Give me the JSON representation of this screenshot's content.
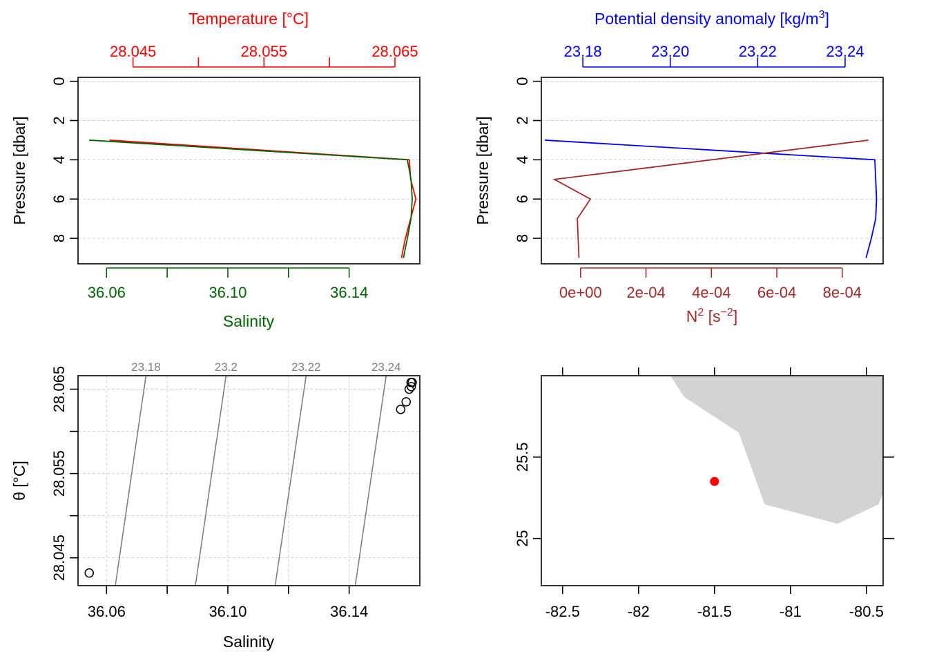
{
  "chart_data": [
    {
      "panel": "profile-temperature-salinity",
      "type": "line",
      "ylabel": "Pressure [dbar]",
      "y_ticks": [
        "0",
        "2",
        "4",
        "6",
        "8"
      ],
      "ylim": [
        -0.2,
        9.3
      ],
      "y_reversed": true,
      "grid": "horizontal dashed",
      "top_axis": {
        "label": "Temperature [°C]",
        "color": "#ff0000",
        "range": [
          28.0408,
          28.0669
        ],
        "ticks": [
          28.045,
          28.05,
          28.055,
          28.06,
          28.065
        ],
        "tick_labels": [
          "28.045",
          "",
          "28.055",
          "",
          "28.065"
        ]
      },
      "bottom_axis": {
        "label": "Salinity",
        "color": "#006400",
        "range": [
          36.0506,
          36.1633
        ],
        "ticks": [
          36.06,
          36.08,
          36.1,
          36.12,
          36.14
        ],
        "tick_labels": [
          "36.06",
          "",
          "36.10",
          "",
          "36.14"
        ]
      },
      "series": [
        {
          "axis": "top",
          "color": "#ff0000",
          "points": [
            [
              28.0432,
              3
            ],
            [
              28.0661,
              4
            ],
            [
              28.0662,
              5
            ],
            [
              28.0666,
              6
            ],
            [
              28.0662,
              7
            ],
            [
              28.0658,
              8
            ],
            [
              28.0655,
              9
            ]
          ]
        },
        {
          "axis": "bottom",
          "color": "#006400",
          "points": [
            [
              36.0543,
              3
            ],
            [
              36.1592,
              4
            ],
            [
              36.1604,
              5
            ],
            [
              36.1608,
              6
            ],
            [
              36.1604,
              7
            ],
            [
              36.1592,
              8
            ],
            [
              36.1579,
              9
            ]
          ]
        }
      ]
    },
    {
      "panel": "profile-density-n2",
      "type": "line",
      "ylabel": "Pressure [dbar]",
      "y_ticks": [
        "0",
        "2",
        "4",
        "6",
        "8"
      ],
      "ylim": [
        -0.2,
        9.3
      ],
      "y_reversed": true,
      "grid": "horizontal dashed",
      "top_axis": {
        "label": "Potential density anomaly [kg/m",
        "label_sup": "3",
        "label_end": "]",
        "color": "#0000ff",
        "range": [
          23.1705,
          23.2487
        ],
        "ticks": [
          23.18,
          23.2,
          23.22,
          23.24
        ],
        "tick_labels": [
          "23.18",
          "23.20",
          "23.22",
          "23.24"
        ]
      },
      "bottom_axis": {
        "label_base": "N",
        "label_sup": "2",
        "label_mid": " [s",
        "label_sup2": "−2",
        "label_end": "]",
        "color": "#a52a2a",
        "range": [
          -0.00012,
          0.000925
        ],
        "ticks": [
          0,
          0.0002,
          0.0004,
          0.0006,
          0.0008
        ],
        "tick_labels": [
          "0e+00",
          "2e-04",
          "4e-04",
          "6e-04",
          "8e-04"
        ]
      },
      "series": [
        {
          "axis": "top",
          "color": "#0000ff",
          "points": [
            [
              23.1713,
              3
            ],
            [
              23.2468,
              4
            ],
            [
              23.247,
              5
            ],
            [
              23.2472,
              6
            ],
            [
              23.247,
              7
            ],
            [
              23.246,
              8
            ],
            [
              23.2448,
              9
            ]
          ]
        },
        {
          "axis": "bottom",
          "color": "#a52a2a",
          "points": [
            [
              0.00088,
              3
            ],
            [
              -8e-05,
              5
            ],
            [
              3e-05,
              6
            ],
            [
              -1e-05,
              7
            ],
            [
              -5e-06,
              9
            ]
          ]
        }
      ]
    },
    {
      "panel": "ts-diagram",
      "type": "scatter",
      "xlabel": "Salinity",
      "ylabel": "θ [°C]",
      "x_range": [
        36.0506,
        36.1633
      ],
      "y_range": [
        28.0417,
        28.0666
      ],
      "x_ticks": [
        36.06,
        36.08,
        36.1,
        36.12,
        36.14
      ],
      "x_tick_labels": [
        "36.06",
        "",
        "36.10",
        "",
        "36.14"
      ],
      "y_ticks": [
        28.045,
        28.05,
        28.055,
        28.06,
        28.065
      ],
      "y_tick_labels": [
        "28.045",
        "",
        "28.055",
        "",
        "28.065"
      ],
      "grid": "dashed",
      "points": [
        [
          36.0543,
          28.0432
        ],
        [
          36.157,
          28.0626
        ],
        [
          36.1588,
          28.0635
        ],
        [
          36.1598,
          28.065
        ],
        [
          36.1605,
          28.0653
        ],
        [
          36.1608,
          28.0658
        ],
        [
          36.1604,
          28.0658
        ]
      ],
      "isopycnals": [
        {
          "label": "23.18",
          "x_bottom": 36.0629,
          "x_top": 36.073
        },
        {
          "label": "23.2",
          "x_bottom": 36.0893,
          "x_top": 36.0994
        },
        {
          "label": "23.22",
          "x_bottom": 36.1156,
          "x_top": 36.1258
        },
        {
          "label": "23.24",
          "x_bottom": 36.142,
          "x_top": 36.1522
        }
      ]
    },
    {
      "panel": "station-map",
      "type": "map",
      "x_range": [
        -82.64,
        -80.39
      ],
      "y_range": [
        24.71,
        26.0
      ],
      "x_ticks": [
        -82.5,
        -82,
        -81.5,
        -81,
        -80.5
      ],
      "x_tick_labels": [
        "-82.5",
        "-82",
        "-81.5",
        "-81",
        "-80.5"
      ],
      "y_ticks": [
        25,
        25.5
      ],
      "y_tick_labels": [
        "25",
        "25.5"
      ],
      "land_color": "#d3d3d3",
      "station_color": "#ff0000",
      "station": [
        -81.5,
        25.35
      ],
      "coastline": [
        [
          -81.79,
          26.0
        ],
        [
          -81.7,
          25.87
        ],
        [
          -81.34,
          25.65
        ],
        [
          -81.17,
          25.21
        ],
        [
          -80.69,
          25.09
        ],
        [
          -80.42,
          25.21
        ],
        [
          -80.39,
          25.28
        ],
        [
          -80.39,
          26.0
        ]
      ]
    }
  ]
}
